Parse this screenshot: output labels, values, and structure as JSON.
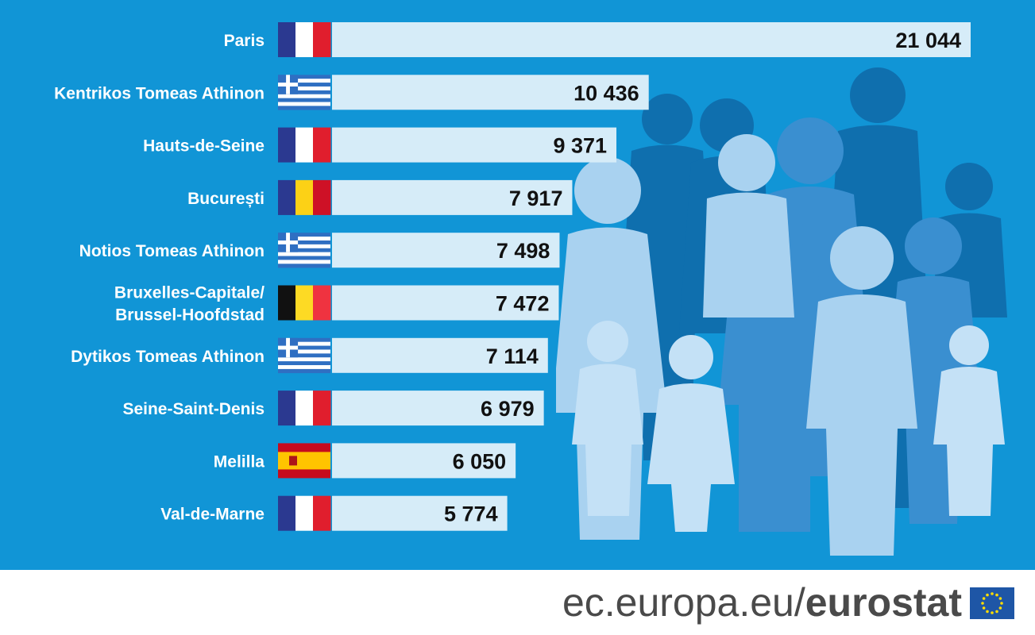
{
  "chart_data": {
    "type": "bar",
    "orientation": "horizontal",
    "categories": [
      "Paris",
      "Kentrikos Tomeas Athinon",
      "Hauts-de-Seine",
      "București",
      "Notios Tomeas Athinon",
      "Bruxelles-Capitale/\nBrussel-Hoofdstad",
      "Dytikos Tomeas Athinon",
      "Seine-Saint-Denis",
      "Melilla",
      "Val-de-Marne"
    ],
    "values": [
      21044,
      10436,
      9371,
      7917,
      7498,
      7472,
      7114,
      6979,
      6050,
      5774
    ],
    "value_labels": [
      "21 044",
      "10 436",
      "9 371",
      "7 917",
      "7 498",
      "7 472",
      "7 114",
      "6 979",
      "6 050",
      "5 774"
    ],
    "flags": [
      "france",
      "greece",
      "france",
      "romania",
      "greece",
      "belgium",
      "greece",
      "france",
      "spain",
      "france"
    ],
    "title": "",
    "xlabel": "",
    "ylabel": "",
    "grid": false,
    "legend": "none"
  },
  "colors": {
    "background": "#1195d6",
    "bar": "#d6ecf8",
    "label_text": "#ffffff",
    "value_text": "#111111"
  },
  "footer": {
    "url_plain": "ec.europa.eu/",
    "url_bold": "eurostat"
  },
  "icons": {
    "logo": "eu-flag-icon",
    "illustration": "people-silhouettes"
  }
}
